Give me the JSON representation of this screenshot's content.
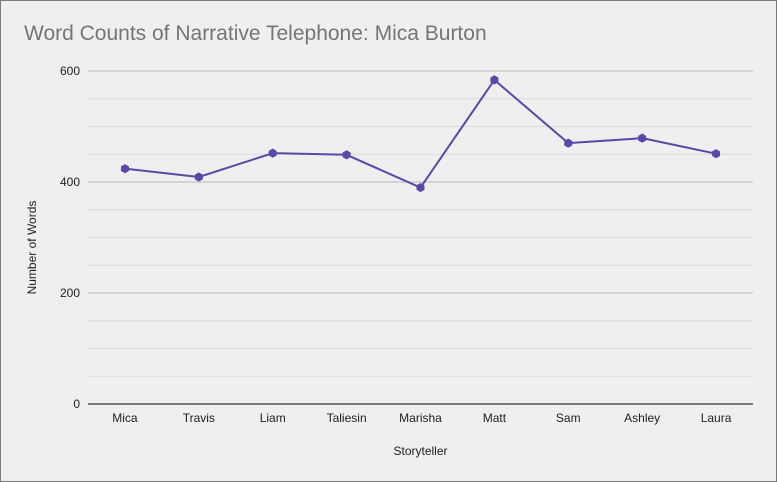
{
  "chart_data": {
    "type": "line",
    "title": "Word Counts of Narrative Telephone: Mica Burton",
    "xlabel": "Storyteller",
    "ylabel": "Number of Words",
    "categories": [
      "Mica",
      "Travis",
      "Liam",
      "Taliesin",
      "Marisha",
      "Matt",
      "Sam",
      "Ashley",
      "Laura"
    ],
    "series": [
      {
        "values": [
          424,
          409,
          452,
          449,
          390,
          584,
          470,
          479,
          451
        ]
      }
    ],
    "ylim": [
      0,
      600
    ],
    "yticks": [
      "0",
      "200",
      "400",
      "600"
    ],
    "grid": true,
    "legend": "none",
    "colors": {
      "line": "#5c46a6",
      "background": "#efefef",
      "major_grid": "#c4c4c4",
      "minor_grid": "#dcdcdc",
      "axis": "#333333"
    }
  }
}
